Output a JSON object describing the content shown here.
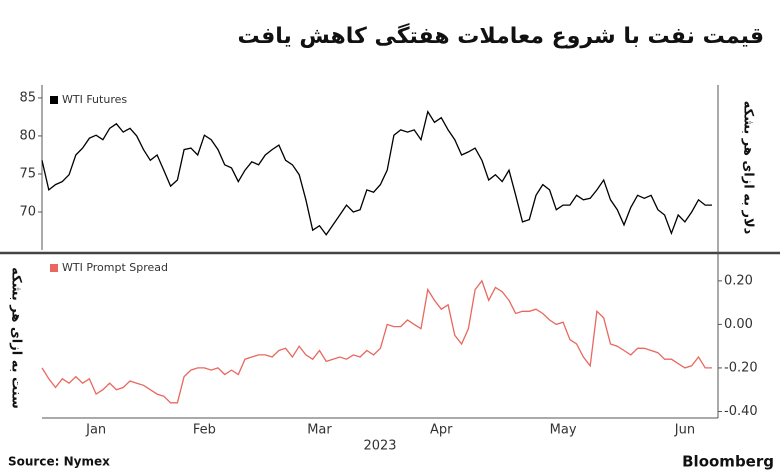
{
  "title": "قیمت نفت با شروع معاملات هفتگی کاهش یافت",
  "source": "Source: Nymex",
  "brand": "Bloomberg",
  "chart_data": [
    {
      "type": "line",
      "ylabel": "دلار به ازای هر بشکه",
      "ylim": [
        65,
        86.7
      ],
      "yticks": [
        70,
        75,
        80,
        85
      ],
      "series": [
        {
          "name": "WTI Futures",
          "color": "#000000",
          "values": [
            76.8,
            72.9,
            73.6,
            74.0,
            74.9,
            77.5,
            78.4,
            79.7,
            80.1,
            79.5,
            81.0,
            81.6,
            80.5,
            81.0,
            80.0,
            78.2,
            76.8,
            77.5,
            75.5,
            73.4,
            74.2,
            78.2,
            78.4,
            77.5,
            80.1,
            79.5,
            78.2,
            76.2,
            75.8,
            74.0,
            75.5,
            76.6,
            76.2,
            77.5,
            78.2,
            78.8,
            76.8,
            76.2,
            74.9,
            71.6,
            67.6,
            68.2,
            67.0,
            68.3,
            69.6,
            70.9,
            70.0,
            70.3,
            72.9,
            72.6,
            73.6,
            75.5,
            80.1,
            80.8,
            80.5,
            80.8,
            79.5,
            83.2,
            81.8,
            82.4,
            80.8,
            79.5,
            77.5,
            77.9,
            78.4,
            76.8,
            74.2,
            74.9,
            74.0,
            75.5,
            72.2,
            68.7,
            69.0,
            72.2,
            73.6,
            72.9,
            70.3,
            70.9,
            70.9,
            72.2,
            71.6,
            71.8,
            72.9,
            74.2,
            71.6,
            70.3,
            68.3,
            70.6,
            72.2,
            71.8,
            72.2,
            70.3,
            69.6,
            67.2,
            69.6,
            68.7,
            70.0,
            71.6,
            70.9,
            70.9
          ]
        }
      ]
    },
    {
      "type": "line",
      "ylabel": "سنت به ازای هر بشکه",
      "xlabel": "2023",
      "categories": [
        null,
        null,
        null,
        null,
        null,
        null,
        null,
        null,
        "Jan",
        null,
        null,
        null,
        null,
        null,
        null,
        null,
        null,
        null,
        null,
        null,
        null,
        null,
        null,
        null,
        "Feb",
        null,
        null,
        null,
        null,
        null,
        null,
        null,
        null,
        null,
        null,
        null,
        null,
        null,
        null,
        null,
        null,
        "Mar",
        null,
        null,
        null,
        null,
        null,
        null,
        null,
        null,
        null,
        null,
        null,
        null,
        null,
        null,
        null,
        null,
        null,
        "Apr",
        null,
        null,
        null,
        null,
        null,
        null,
        null,
        null,
        null,
        null,
        null,
        null,
        null,
        null,
        null,
        null,
        null,
        "May",
        null,
        null,
        null,
        null,
        null,
        null,
        null,
        null,
        null,
        null,
        null,
        null,
        null,
        null,
        null,
        null,
        null,
        "Jun",
        null,
        null,
        null,
        null
      ],
      "ylim": [
        -0.43,
        0.305
      ],
      "yticks": [
        {
          "value": 0.2,
          "label": "0.20"
        },
        {
          "value": 0,
          "label": "0.00"
        },
        {
          "value": -0.2,
          "label": "-0.20"
        },
        {
          "value": -0.4,
          "label": "-0.40"
        }
      ],
      "series": [
        {
          "name": "WTI Prompt Spread",
          "color": "#e8685f",
          "values": [
            -0.2,
            -0.25,
            -0.29,
            -0.25,
            -0.27,
            -0.24,
            -0.27,
            -0.25,
            -0.32,
            -0.3,
            -0.27,
            -0.3,
            -0.29,
            -0.26,
            -0.27,
            -0.28,
            -0.3,
            -0.32,
            -0.33,
            -0.36,
            -0.36,
            -0.24,
            -0.21,
            -0.2,
            -0.2,
            -0.21,
            -0.2,
            -0.23,
            -0.21,
            -0.23,
            -0.16,
            -0.15,
            -0.14,
            -0.14,
            -0.15,
            -0.12,
            -0.11,
            -0.15,
            -0.1,
            -0.14,
            -0.16,
            -0.12,
            -0.17,
            -0.16,
            -0.15,
            -0.16,
            -0.14,
            -0.15,
            -0.12,
            -0.14,
            -0.11,
            0.0,
            -0.01,
            -0.01,
            0.02,
            0.0,
            -0.02,
            0.16,
            0.11,
            0.07,
            0.09,
            -0.05,
            -0.09,
            -0.02,
            0.16,
            0.2,
            0.11,
            0.17,
            0.15,
            0.11,
            0.05,
            0.06,
            0.06,
            0.07,
            0.05,
            0.02,
            0.0,
            0.01,
            -0.07,
            -0.09,
            -0.15,
            -0.19,
            0.06,
            0.03,
            -0.09,
            -0.1,
            -0.12,
            -0.14,
            -0.11,
            -0.11,
            -0.12,
            -0.13,
            -0.16,
            -0.16,
            -0.18,
            -0.2,
            -0.19,
            -0.15,
            -0.2,
            -0.2
          ]
        }
      ]
    }
  ]
}
